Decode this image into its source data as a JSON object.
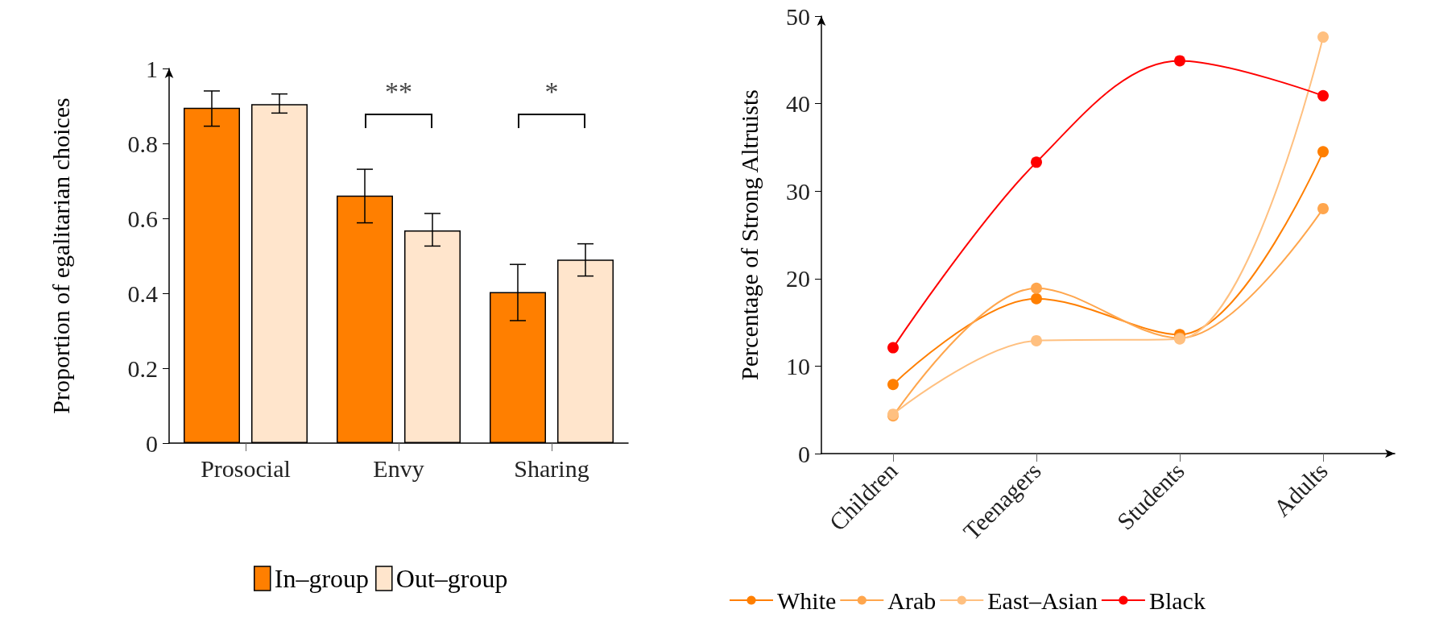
{
  "chart_data": [
    {
      "type": "bar",
      "ylabel": "Proportion of egalitarian choices",
      "categories": [
        "Prosocial",
        "Envy",
        "Sharing"
      ],
      "series": [
        {
          "name": "In–group",
          "color": "#ff7f00",
          "values": [
            0.895,
            0.661,
            0.403
          ],
          "errors": [
            [
              0.846,
              0.94
            ],
            [
              0.588,
              0.731
            ],
            [
              0.327,
              0.477
            ]
          ]
        },
        {
          "name": "Out–group",
          "color": "#ffe5cc",
          "values": [
            0.905,
            0.568,
            0.49
          ],
          "errors": [
            [
              0.881,
              0.932
            ],
            [
              0.526,
              0.613
            ],
            [
              0.446,
              0.532
            ]
          ]
        }
      ],
      "ylim": [
        0,
        1
      ],
      "yticks": [
        0,
        0.2,
        0.4,
        0.6,
        0.8,
        1
      ],
      "grid": false,
      "legend": "bottom",
      "annotations": [
        "**",
        "*"
      ]
    },
    {
      "type": "line",
      "ylabel": "Percentage of Strong Altruists",
      "categories": [
        "Children",
        "Teenagers",
        "Students",
        "Adults"
      ],
      "series": [
        {
          "name": "White",
          "color": "#ff7f00",
          "values": [
            7.9,
            17.7,
            13.6,
            34.5
          ]
        },
        {
          "name": "Arab",
          "color": "#ffa64d",
          "values": [
            4.3,
            18.9,
            13.2,
            28.0
          ]
        },
        {
          "name": "East–Asian",
          "color": "#ffc080",
          "values": [
            4.5,
            12.9,
            13.1,
            47.6
          ]
        },
        {
          "name": "Black",
          "color": "#ff0000",
          "values": [
            12.1,
            33.3,
            44.9,
            40.9
          ]
        }
      ],
      "ylim": [
        0,
        50
      ],
      "yticks": [
        0,
        10,
        20,
        30,
        40,
        50
      ],
      "grid": false,
      "legend": "bottom",
      "marker": "circle"
    }
  ]
}
